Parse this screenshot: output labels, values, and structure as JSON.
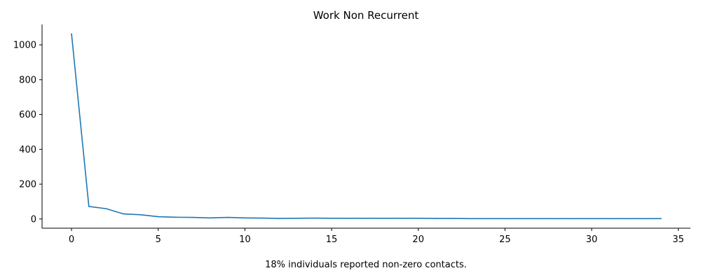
{
  "chart_data": {
    "type": "line",
    "title": "Work Non Recurrent",
    "xlabel": "",
    "ylabel": "",
    "note": "18% individuals reported non-zero contacts.",
    "xlim": [
      -1.7,
      35.7
    ],
    "ylim": [
      -53,
      1117
    ],
    "xticks": [
      0,
      5,
      10,
      15,
      20,
      25,
      30,
      35
    ],
    "yticks": [
      0,
      200,
      400,
      600,
      800,
      1000
    ],
    "grid": false,
    "legend": "none",
    "line_color": "#1f77b4",
    "series": [
      {
        "x": [
          0,
          1,
          2,
          3,
          4,
          5,
          6,
          7,
          8,
          9,
          10,
          11,
          12,
          13,
          14,
          15,
          16,
          17,
          18,
          19,
          20,
          21,
          22,
          23,
          24,
          25,
          26,
          27,
          28,
          29,
          30,
          31,
          32,
          33,
          34
        ],
        "values": [
          1063,
          72,
          59,
          29,
          24,
          13,
          10,
          9,
          6,
          9,
          6,
          5,
          3,
          4,
          5,
          4,
          4,
          4,
          4,
          4,
          4,
          3,
          3,
          2,
          2,
          2,
          2,
          2,
          2,
          2,
          2,
          2,
          2,
          2,
          2
        ]
      }
    ]
  }
}
